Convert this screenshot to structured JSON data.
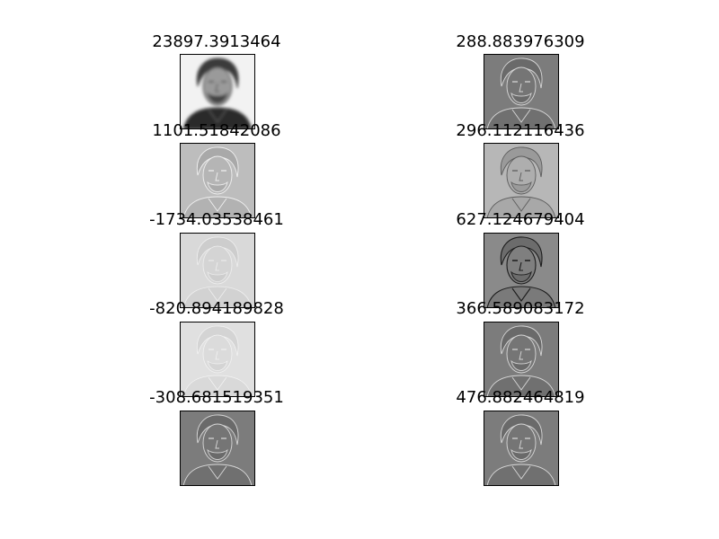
{
  "figure": {
    "panels": [
      {
        "title": "23897.3913464",
        "variant": "blurred-photo"
      },
      {
        "title": "288.883976309",
        "variant": "edge-dark"
      },
      {
        "title": "1101.51842086",
        "variant": "edge-mid"
      },
      {
        "title": "296.112116436",
        "variant": "edge-light"
      },
      {
        "title": "-1734.03538461",
        "variant": "edge-faint"
      },
      {
        "title": "627.124679404",
        "variant": "edge-strong"
      },
      {
        "title": "-820.894189828",
        "variant": "edge-faintest"
      },
      {
        "title": "366.589083172",
        "variant": "edge-dark"
      },
      {
        "title": "-308.681519351",
        "variant": "edge-dark"
      },
      {
        "title": "476.882464819",
        "variant": "edge-dark"
      }
    ]
  }
}
